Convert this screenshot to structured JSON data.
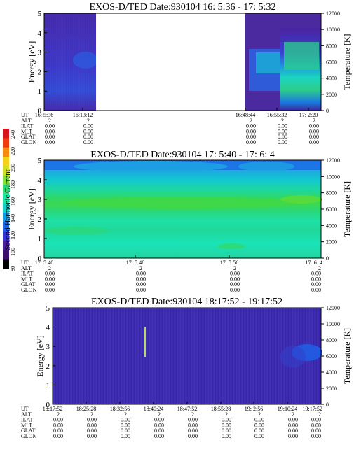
{
  "colorbar": {
    "label": "Second Harmonic Current",
    "ticks": [
      "240",
      "220",
      "200",
      "180",
      "160",
      "140",
      "120",
      "100",
      "80"
    ],
    "colors": [
      "#d8141c",
      "#f03a10",
      "#f98a10",
      "#f5d21a",
      "#cfe020",
      "#7fe13a",
      "#2ed873",
      "#19e6a4",
      "#11d1c9",
      "#139be0",
      "#1a63e8",
      "#3535d0",
      "#4b1f9c",
      "#3c0f6a",
      "#000000"
    ]
  },
  "chart_data": [
    {
      "type": "heatmap",
      "title": "EXOS-D/TED   Date:930104  16: 5:36 - 17: 5:32",
      "ylabel": "Energy [eV]",
      "y2label": "Temperature [K]",
      "ylim": [
        0,
        5
      ],
      "y2lim": [
        0,
        12000
      ],
      "yticks": [
        "0",
        "1",
        "2",
        "3",
        "4",
        "5"
      ],
      "y2ticks": [
        "0",
        "2000",
        "4000",
        "6000",
        "8000",
        "10000",
        "12000"
      ],
      "data_gap": {
        "from": "16:13:12",
        "to": "16:48:44"
      },
      "trace_rows": [
        {
          "label": "UT",
          "values": [
            "16: 5:36",
            "16:13:12",
            "16:48:44",
            "16:55:32",
            "17: 2:20"
          ]
        },
        {
          "label": "ALT",
          "values": [
            "2",
            "2",
            "2",
            "2",
            "2"
          ]
        },
        {
          "label": "ILAT",
          "values": [
            "0.00",
            "0.00",
            "0.00",
            "0.00",
            "0.00"
          ]
        },
        {
          "label": "MLT",
          "values": [
            "0.00",
            "0.00",
            "0.00",
            "0.00",
            "0.00"
          ]
        },
        {
          "label": "GLAT",
          "values": [
            "0.00",
            "0.00",
            "0.00",
            "0.00",
            "0.00"
          ]
        },
        {
          "label": "GLON",
          "values": [
            "0.00",
            "0.00",
            "0.00",
            "0.00",
            "0.00"
          ]
        }
      ]
    },
    {
      "type": "heatmap",
      "title": "EXOS-D/TED   Date:930104  17: 5:40 - 17: 6: 4",
      "ylabel": "Energy [eV]",
      "y2label": "Temperature [K]",
      "ylim": [
        0,
        5
      ],
      "y2lim": [
        0,
        12000
      ],
      "yticks": [
        "0",
        "1",
        "2",
        "3",
        "4",
        "5"
      ],
      "y2ticks": [
        "0",
        "2000",
        "4000",
        "6000",
        "8000",
        "10000",
        "12000"
      ],
      "trace_rows": [
        {
          "label": "UT",
          "values": [
            "17: 5:40",
            "17: 5:48",
            "17: 5:56",
            "17: 6: 4"
          ]
        },
        {
          "label": "ALT",
          "values": [
            "2",
            "2",
            "2",
            "2"
          ]
        },
        {
          "label": "ILAT",
          "values": [
            "0.00",
            "0.00",
            "0.00",
            "0.00"
          ]
        },
        {
          "label": "MLT",
          "values": [
            "0.00",
            "0.00",
            "0.00",
            "0.00"
          ]
        },
        {
          "label": "GLAT",
          "values": [
            "0.00",
            "0.00",
            "0.00",
            "0.00"
          ]
        },
        {
          "label": "GLON",
          "values": [
            "0.00",
            "0.00",
            "0.00",
            "0.00"
          ]
        }
      ]
    },
    {
      "type": "heatmap",
      "title": "EXOS-D/TED   Date:930104  18:17:52 - 19:17:52",
      "ylabel": "Energy [eV]",
      "y2label": "Temperature [K]",
      "ylim": [
        0,
        5
      ],
      "y2lim": [
        0,
        12000
      ],
      "yticks": [
        "0",
        "1",
        "2",
        "3",
        "4",
        "5"
      ],
      "y2ticks": [
        "0",
        "2000",
        "4000",
        "6000",
        "8000",
        "10000",
        "12000"
      ],
      "trace_rows": [
        {
          "label": "UT",
          "values": [
            "18:17:52",
            "18:25:28",
            "18:32:56",
            "18:40:24",
            "18:47:52",
            "18:55:28",
            "19: 2:56",
            "19:10:24",
            "19:17:52"
          ]
        },
        {
          "label": "ALT",
          "values": [
            "2",
            "2",
            "2",
            "2",
            "2",
            "2",
            "2",
            "2",
            "2"
          ]
        },
        {
          "label": "ILAT",
          "values": [
            "0.00",
            "0.00",
            "0.00",
            "0.00",
            "0.00",
            "0.00",
            "0.00",
            "0.00",
            "0.00"
          ]
        },
        {
          "label": "MLT",
          "values": [
            "0.00",
            "0.00",
            "0.00",
            "0.00",
            "0.00",
            "0.00",
            "0.00",
            "0.00",
            "0.00"
          ]
        },
        {
          "label": "GLAT",
          "values": [
            "0.00",
            "0.00",
            "0.00",
            "0.00",
            "0.00",
            "0.00",
            "0.00",
            "0.00",
            "0.00"
          ]
        },
        {
          "label": "GLON",
          "values": [
            "0.00",
            "0.00",
            "0.00",
            "0.00",
            "0.00",
            "0.00",
            "0.00",
            "0.00",
            "0.00"
          ]
        }
      ]
    }
  ]
}
